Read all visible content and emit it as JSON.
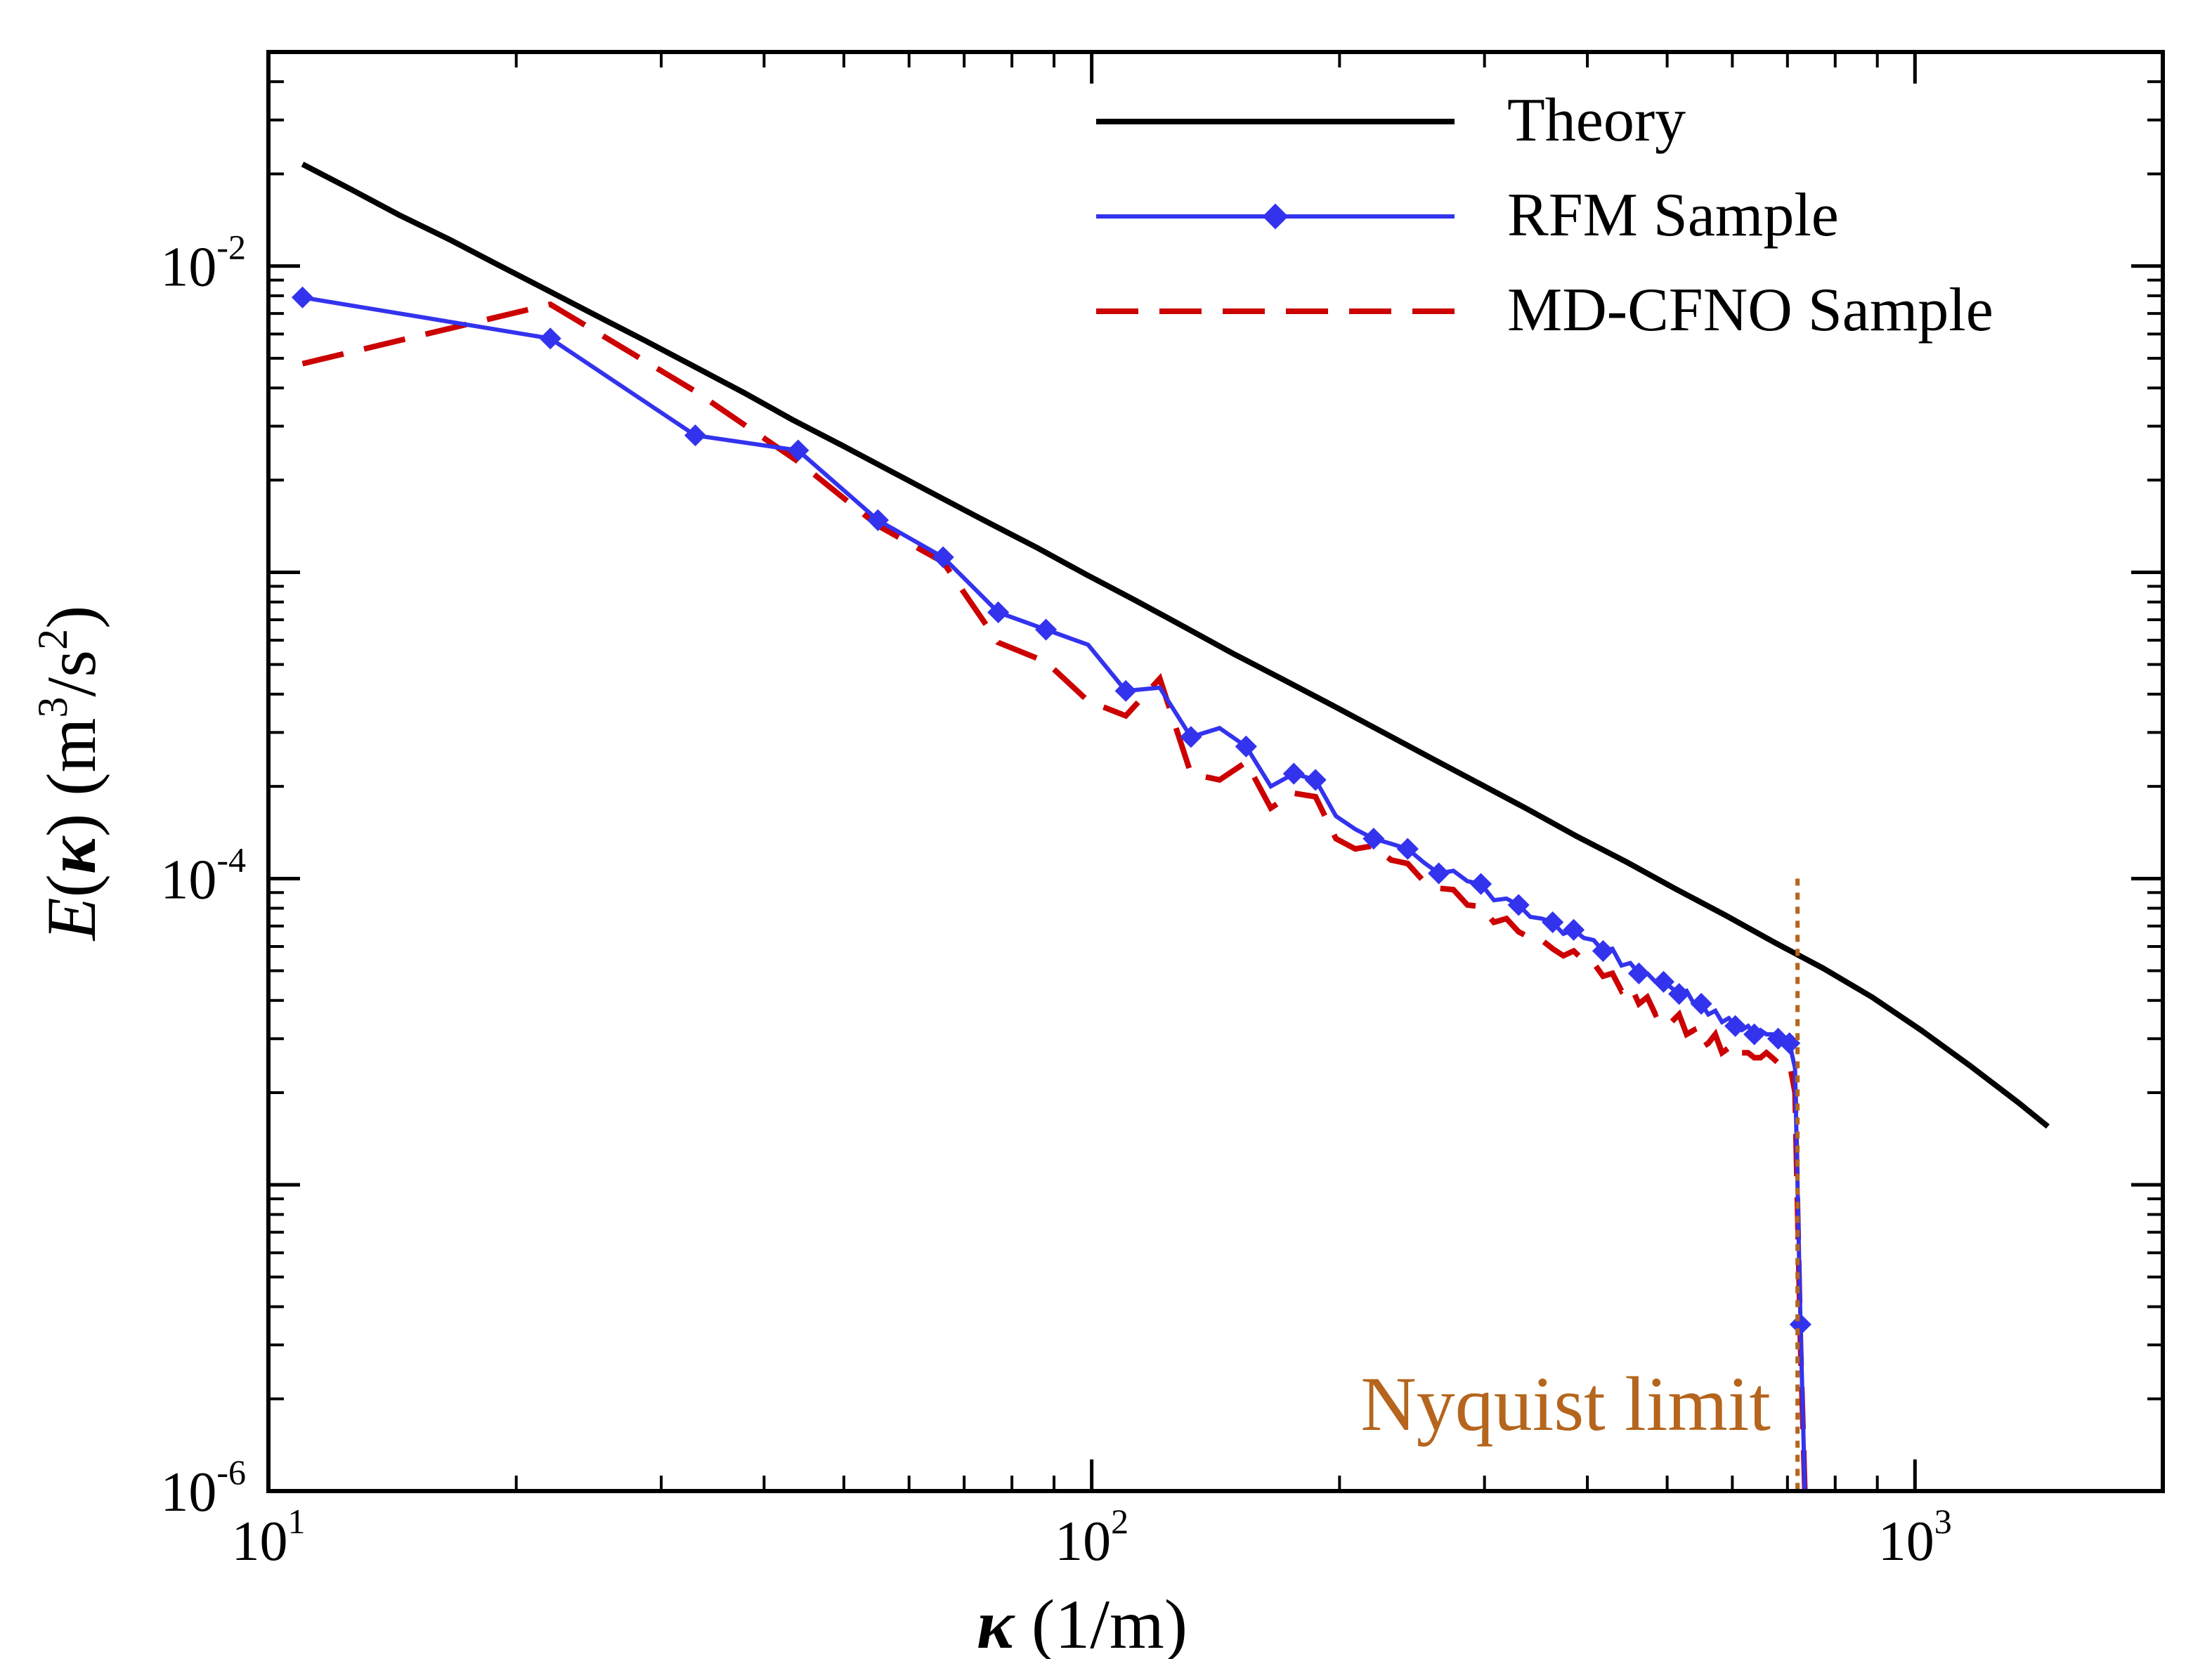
{
  "chart_data": {
    "type": "line",
    "scale": {
      "x": "log",
      "y": "log"
    },
    "xlim": [
      10,
      2000
    ],
    "ylim": [
      1e-06,
      0.05
    ],
    "xlabel": {
      "symbol": "κ",
      "unit": "(1/m)"
    },
    "ylabel": {
      "func": "E",
      "symbol": "κ",
      "unit_pre": "(m",
      "unit_exp1": "3",
      "unit_mid": "/s",
      "unit_exp2": "2",
      "unit_post": ")"
    },
    "x_ticks": [
      {
        "value": 10,
        "base": "10",
        "exp": "1"
      },
      {
        "value": 100,
        "base": "10",
        "exp": "2"
      },
      {
        "value": 1000,
        "base": "10",
        "exp": "3"
      }
    ],
    "y_ticks": [
      {
        "value": 1e-06,
        "base": "10",
        "exp": "-6"
      },
      {
        "value": 0.0001,
        "base": "10",
        "exp": "-4"
      },
      {
        "value": 0.01,
        "base": "10",
        "exp": "-2"
      }
    ],
    "colors": {
      "theory": "#000000",
      "rfm": "#3333ee",
      "mdcfno": "#cc0000",
      "nyquist": "#b5651d"
    },
    "series": [
      {
        "name": "Theory",
        "style": "solid",
        "x": [
          11,
          12.6,
          14.4,
          16.6,
          19,
          21.8,
          25,
          28.7,
          32.9,
          37.8,
          43.3,
          49.7,
          57,
          65.4,
          75,
          86,
          98.7,
          113,
          130,
          149,
          171,
          196,
          225,
          258,
          296,
          339,
          389,
          447,
          512,
          588,
          674,
          773,
          887,
          1017,
          1166,
          1337,
          1450
        ],
        "y": [
          0.0215,
          0.0178,
          0.0147,
          0.0122,
          0.0101,
          0.00835,
          0.0069,
          0.0057,
          0.0047,
          0.00386,
          0.00315,
          0.0026,
          0.00214,
          0.00176,
          0.00145,
          0.0012,
          0.00098,
          0.00081,
          0.00066,
          0.00054,
          0.000446,
          0.000368,
          0.000302,
          0.000248,
          0.000204,
          0.000168,
          0.000137,
          0.000113,
          9.25e-05,
          7.6e-05,
          6.2e-05,
          5.1e-05,
          4.1e-05,
          3.2e-05,
          2.45e-05,
          1.85e-05,
          1.55e-05
        ]
      },
      {
        "name": "RFM Sample",
        "style": "solid-marker",
        "x": [
          11,
          22,
          33,
          44,
          55,
          66,
          77,
          88,
          99,
          110,
          121,
          132,
          143,
          154,
          165,
          176,
          187,
          198,
          209,
          220,
          231,
          242,
          253,
          264,
          275,
          286,
          297,
          308,
          319,
          330,
          341,
          352,
          363,
          374,
          385,
          396,
          407,
          418,
          429,
          440,
          451,
          462,
          473,
          484,
          495,
          506,
          517,
          528,
          539,
          550,
          561,
          572,
          583,
          594,
          605,
          616,
          627,
          638,
          649,
          660,
          671,
          682,
          693,
          704,
          715,
          726,
          735
        ],
        "y": [
          0.0079,
          0.0058,
          0.0028,
          0.0025,
          0.00148,
          0.00112,
          0.00074,
          0.00065,
          0.00058,
          0.00041,
          0.00042,
          0.00029,
          0.00031,
          0.00027,
          0.0002,
          0.00022,
          0.00021,
          0.00016,
          0.000145,
          0.000135,
          0.00013,
          0.000125,
          0.000113,
          0.000104,
          0.000106,
          9.8e-05,
          9.6e-05,
          8.5e-05,
          8.6e-05,
          8.2e-05,
          7.5e-05,
          7.4e-05,
          7.2e-05,
          6.6e-05,
          6.8e-05,
          6.4e-05,
          6.3e-05,
          5.8e-05,
          5.9e-05,
          5.2e-05,
          5.3e-05,
          4.9e-05,
          4.9e-05,
          4.6e-05,
          4.6e-05,
          4.4e-05,
          4.2e-05,
          4.3e-05,
          3.9e-05,
          3.9e-05,
          3.6e-05,
          3.7e-05,
          3.4e-05,
          3.5e-05,
          3.3e-05,
          3.2e-05,
          3.3e-05,
          3.1e-05,
          3.2e-05,
          3.1e-05,
          3.1e-05,
          3e-05,
          3e-05,
          2.9e-05,
          2.4e-05,
          3.5e-06,
          1e-06
        ],
        "marker_x": [
          11,
          22,
          33,
          44,
          55,
          66,
          77,
          88,
          110,
          132,
          154,
          176,
          187,
          220,
          242,
          264,
          297,
          330,
          363,
          385,
          418,
          462,
          495,
          517,
          550,
          605,
          638,
          682,
          704,
          726
        ]
      },
      {
        "name": "MD-CFNO Sample",
        "style": "dashed",
        "x": [
          11,
          22,
          33,
          44,
          55,
          66,
          77,
          88,
          99,
          110,
          121,
          132,
          143,
          154,
          165,
          176,
          187,
          198,
          209,
          220,
          231,
          242,
          253,
          264,
          275,
          286,
          297,
          308,
          319,
          330,
          341,
          352,
          363,
          374,
          385,
          396,
          407,
          418,
          429,
          440,
          451,
          462,
          473,
          484,
          495,
          506,
          517,
          528,
          539,
          550,
          561,
          572,
          583,
          594,
          605,
          616,
          627,
          638,
          649,
          660,
          671,
          682,
          693,
          704,
          715,
          726,
          735
        ],
        "y": [
          0.0048,
          0.0075,
          0.0039,
          0.0023,
          0.00142,
          0.00108,
          0.00059,
          0.00051,
          0.00038,
          0.00034,
          0.00045,
          0.00022,
          0.00021,
          0.00024,
          0.00017,
          0.00019,
          0.000185,
          0.000135,
          0.000125,
          0.000128,
          0.000115,
          0.000112,
          9.8e-05,
          9.3e-05,
          9.2e-05,
          8.2e-05,
          8.1e-05,
          7.2e-05,
          7.4e-05,
          6.7e-05,
          6.4e-05,
          6.3e-05,
          5.9e-05,
          5.6e-05,
          5.8e-05,
          5.4e-05,
          5.3e-05,
          4.8e-05,
          4.9e-05,
          4.3e-05,
          4.5e-05,
          3.9e-05,
          4.1e-05,
          3.6e-05,
          3.7e-05,
          3.4e-05,
          3.6e-05,
          3.1e-05,
          3.2e-05,
          2.8e-05,
          2.9e-05,
          3.1e-05,
          2.7e-05,
          2.8e-05,
          2.9e-05,
          2.7e-05,
          2.7e-05,
          2.6e-05,
          2.6e-05,
          2.7e-05,
          2.6e-05,
          2.5e-05,
          2.5e-05,
          2.5e-05,
          2e-05,
          3e-06,
          1e-06
        ]
      }
    ],
    "annotations": [
      {
        "type": "vline",
        "x": 720,
        "y_top": 0.0001,
        "label": "Nyquist limit"
      }
    ],
    "legend": {
      "position": "top-right"
    }
  }
}
